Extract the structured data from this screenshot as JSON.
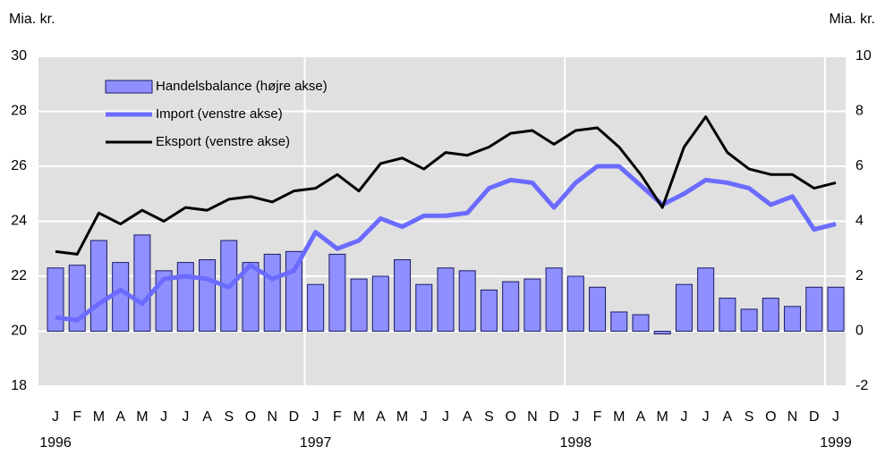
{
  "chart_data": {
    "type": "combo",
    "y_label": "Mia. kr.",
    "y2_label": "Mia. kr.",
    "categories": [
      "J",
      "F",
      "M",
      "A",
      "M",
      "J",
      "J",
      "A",
      "S",
      "O",
      "N",
      "D",
      "J",
      "F",
      "M",
      "A",
      "M",
      "J",
      "J",
      "A",
      "S",
      "O",
      "N",
      "D",
      "J",
      "F",
      "M",
      "A",
      "M",
      "J",
      "J",
      "A",
      "S",
      "O",
      "N",
      "D",
      "J"
    ],
    "years": [
      "1996",
      "1997",
      "1998",
      "1999"
    ],
    "ylim": [
      18,
      30
    ],
    "yticks": [
      18,
      20,
      22,
      24,
      26,
      28,
      30
    ],
    "y2lim": [
      -2,
      10
    ],
    "y2ticks": [
      -2,
      0,
      2,
      4,
      6,
      8,
      10
    ],
    "grid": true,
    "legend": "top-left",
    "series": [
      {
        "name": "Handelsbalance (højre akse)",
        "type": "bar",
        "axis": "y2",
        "color": "#8f8fff",
        "values": [
          2.3,
          2.4,
          3.3,
          2.5,
          3.5,
          2.2,
          2.5,
          2.6,
          3.3,
          2.5,
          2.8,
          2.9,
          1.7,
          2.8,
          1.9,
          2.0,
          2.6,
          1.7,
          2.3,
          2.2,
          1.5,
          1.8,
          1.9,
          2.3,
          2.0,
          1.6,
          0.7,
          0.6,
          -0.1,
          1.7,
          2.3,
          1.2,
          0.8,
          1.2,
          0.9,
          1.6,
          1.6
        ]
      },
      {
        "name": "Import (venstre akse)",
        "type": "line",
        "axis": "y",
        "color": "#6b6bff",
        "values": [
          20.5,
          20.4,
          21.0,
          21.5,
          21.0,
          21.9,
          22.0,
          21.9,
          21.6,
          22.4,
          21.9,
          22.2,
          23.6,
          23.0,
          23.3,
          24.1,
          23.8,
          24.2,
          24.2,
          24.3,
          25.2,
          25.5,
          25.4,
          24.5,
          25.4,
          26.0,
          26.0,
          25.3,
          24.6,
          25.0,
          25.5,
          25.4,
          25.2,
          24.6,
          24.9,
          23.7,
          23.9
        ]
      },
      {
        "name": "Eksport (venstre akse)",
        "type": "line",
        "axis": "y",
        "color": "#000000",
        "values": [
          22.9,
          22.8,
          24.3,
          23.9,
          24.4,
          24.0,
          24.5,
          24.4,
          24.8,
          24.9,
          24.7,
          25.1,
          25.2,
          25.7,
          25.1,
          26.1,
          26.3,
          25.9,
          26.5,
          26.4,
          26.7,
          27.2,
          27.3,
          26.8,
          27.3,
          27.4,
          26.7,
          25.7,
          24.5,
          26.7,
          27.8,
          26.5,
          25.9,
          25.7,
          25.7,
          25.2,
          25.4
        ]
      }
    ]
  }
}
